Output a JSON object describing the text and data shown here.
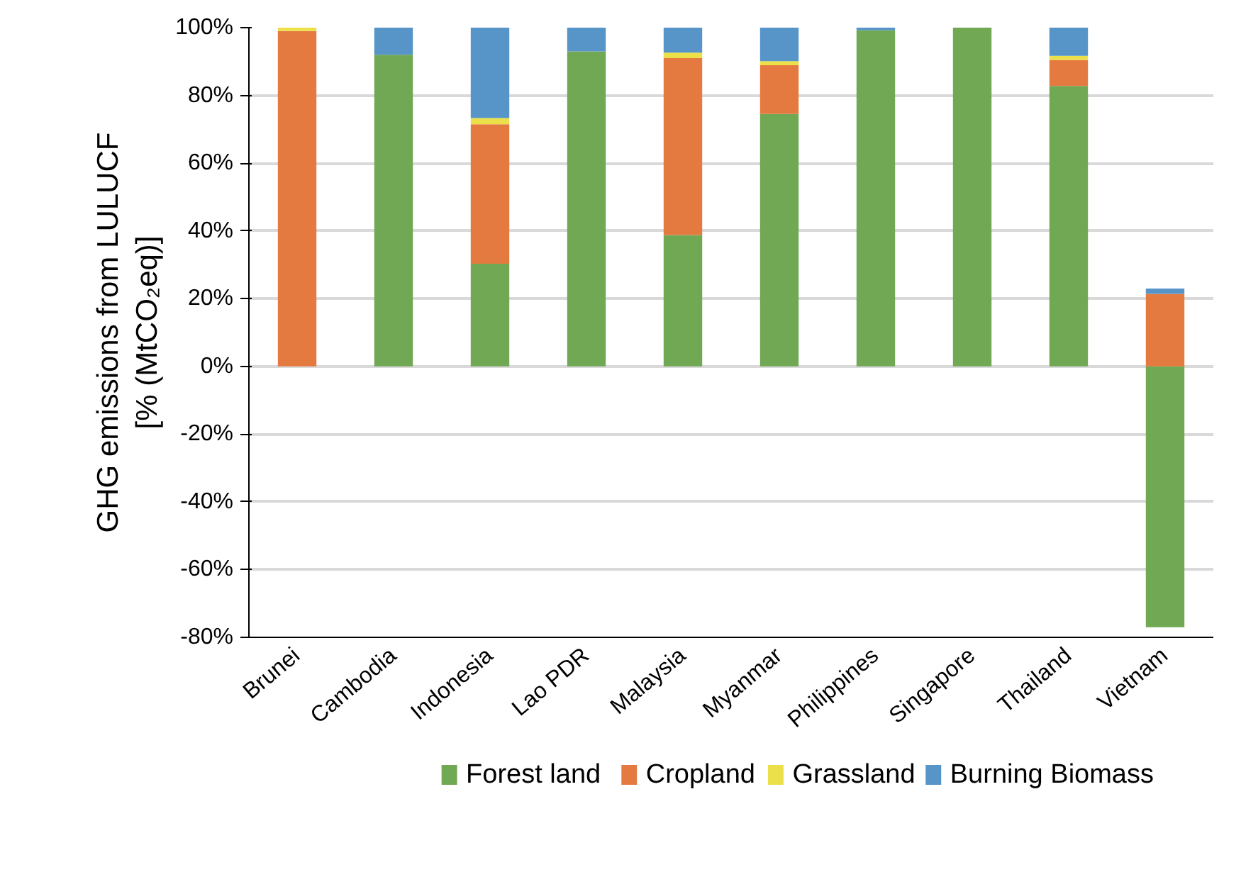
{
  "chart_data": {
    "type": "bar",
    "stacked": true,
    "ylabel": "GHG emissions from LULUCF\n[% (MtCO₂eq)]",
    "categories": [
      "Brunei",
      "Cambodia",
      "Indonesia",
      "Lao PDR",
      "Malaysia",
      "Myanmar",
      "Philippines",
      "Singapore",
      "Thailand",
      "Vietnam"
    ],
    "series": [
      {
        "name": "Forest land",
        "color": "#70a853",
        "values": [
          0,
          92,
          30.3,
          93,
          38.8,
          74.5,
          99.2,
          100,
          82.8,
          -77
        ]
      },
      {
        "name": "Cropland",
        "color": "#e57a40",
        "values": [
          99,
          0,
          41.2,
          0,
          52.2,
          14.4,
          0,
          0,
          7.7,
          21.4
        ]
      },
      {
        "name": "Grassland",
        "color": "#ebe04a",
        "values": [
          1,
          0,
          1.8,
          0,
          1.6,
          1.2,
          0,
          0,
          1.2,
          0
        ]
      },
      {
        "name": "Burning Biomass",
        "color": "#5794c8",
        "values": [
          0,
          8,
          26.7,
          7,
          7.4,
          9.9,
          0.8,
          0,
          8.3,
          1.6
        ]
      }
    ],
    "ylim": [
      -80,
      100
    ],
    "yticks": [
      {
        "value": -80,
        "label": "-80%"
      },
      {
        "value": -60,
        "label": "-60%"
      },
      {
        "value": -40,
        "label": "-40%"
      },
      {
        "value": -20,
        "label": "-20%"
      },
      {
        "value": 0,
        "label": "0%"
      },
      {
        "value": 20,
        "label": "20%"
      },
      {
        "value": 40,
        "label": "40%"
      },
      {
        "value": 60,
        "label": "60%"
      },
      {
        "value": 80,
        "label": "80%"
      },
      {
        "value": 100,
        "label": "100%"
      }
    ],
    "grid": "y",
    "legend": "bottom"
  }
}
